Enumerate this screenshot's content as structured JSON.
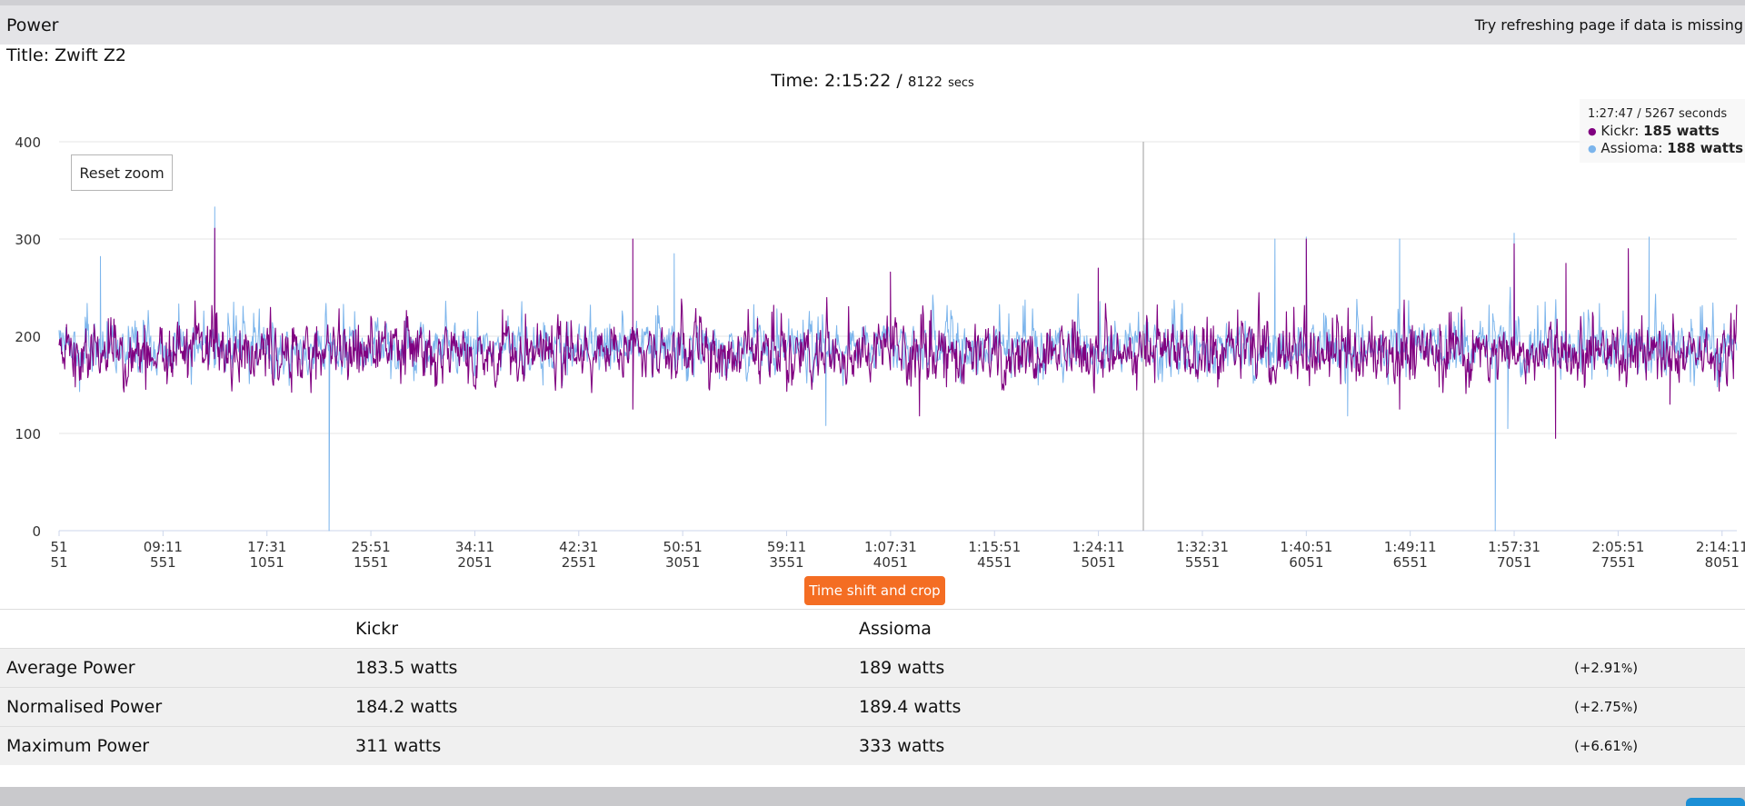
{
  "header": {
    "title": "Power",
    "note": "Try refreshing page if data is missing"
  },
  "activity": {
    "title": "Title: Zwift Z2"
  },
  "time": {
    "label": "Time: 2:15:22 /",
    "secs": "8122",
    "unit": "secs"
  },
  "tooltip": {
    "head": "1:27:47 / 5267 seconds",
    "kickr_label": "Kickr:",
    "kickr_value": "185 watts",
    "assioma_label": "Assioma:",
    "assioma_value": "188 watts"
  },
  "buttons": {
    "reset_zoom": "Reset zoom",
    "time_shift": "Time shift and crop"
  },
  "colors": {
    "kickr": "#800080",
    "assioma": "#7cb5ec",
    "accent": "#f46d23",
    "grid": "#e6e6e6"
  },
  "chart_data": {
    "type": "line",
    "ylim": [
      0,
      400
    ],
    "xlim": [
      51,
      8122
    ],
    "yticks": [
      0,
      100,
      200,
      300,
      400
    ],
    "xticks": [
      {
        "t": 51,
        "clock": "51",
        "secs": "51"
      },
      {
        "t": 551,
        "clock": "09:11",
        "secs": "551"
      },
      {
        "t": 1051,
        "clock": "17:31",
        "secs": "1051"
      },
      {
        "t": 1551,
        "clock": "25:51",
        "secs": "1551"
      },
      {
        "t": 2051,
        "clock": "34:11",
        "secs": "2051"
      },
      {
        "t": 2551,
        "clock": "42:31",
        "secs": "2551"
      },
      {
        "t": 3051,
        "clock": "50:51",
        "secs": "3051"
      },
      {
        "t": 3551,
        "clock": "59:11",
        "secs": "3551"
      },
      {
        "t": 4051,
        "clock": "1:07:31",
        "secs": "4051"
      },
      {
        "t": 4551,
        "clock": "1:15:51",
        "secs": "4551"
      },
      {
        "t": 5051,
        "clock": "1:24:11",
        "secs": "5051"
      },
      {
        "t": 5551,
        "clock": "1:32:31",
        "secs": "5551"
      },
      {
        "t": 6051,
        "clock": "1:40:51",
        "secs": "6051"
      },
      {
        "t": 6551,
        "clock": "1:49:11",
        "secs": "6551"
      },
      {
        "t": 7051,
        "clock": "1:57:31",
        "secs": "7051"
      },
      {
        "t": 7551,
        "clock": "2:05:51",
        "secs": "7551"
      },
      {
        "t": 8051,
        "clock": "2:14:11",
        "secs": "8051"
      }
    ],
    "crosshair_t": 5267,
    "series": [
      {
        "name": "Kickr",
        "color": "#800080",
        "mean": 183.5,
        "max": 311,
        "min": 93,
        "peaks": [
          [
            800,
            311
          ],
          [
            2811,
            300
          ],
          [
            5050,
            270
          ],
          [
            6051,
            300
          ],
          [
            7051,
            295
          ],
          [
            7600,
            290
          ],
          [
            7300,
            275
          ],
          [
            4050,
            266
          ]
        ],
        "dips": [
          [
            2811,
            125
          ],
          [
            7250,
            95
          ],
          [
            4190,
            118
          ],
          [
            6500,
            125
          ],
          [
            7800,
            130
          ]
        ]
      },
      {
        "name": "Assioma",
        "color": "#7cb5ec",
        "mean": 189,
        "max": 333,
        "min": 0,
        "peaks": [
          [
            800,
            333
          ],
          [
            6051,
            302
          ],
          [
            7051,
            306
          ],
          [
            7700,
            302
          ],
          [
            6500,
            300
          ],
          [
            5900,
            300
          ],
          [
            3010,
            285
          ],
          [
            250,
            282
          ]
        ],
        "dips": [
          [
            1350,
            0
          ],
          [
            6960,
            0
          ],
          [
            3740,
            108
          ],
          [
            7020,
            105
          ],
          [
            6250,
            118
          ]
        ]
      }
    ]
  },
  "stats": {
    "headers": [
      "",
      "Kickr",
      "Assioma",
      ""
    ],
    "rows": [
      {
        "label": "Average Power",
        "kickr": "183.5 watts",
        "assioma": "189 watts",
        "diff": "(+2.91",
        "pct": "%",
        "close": ")"
      },
      {
        "label": "Normalised Power",
        "kickr": "184.2 watts",
        "assioma": "189.4 watts",
        "diff": "(+2.75",
        "pct": "%",
        "close": ")"
      },
      {
        "label": "Maximum Power",
        "kickr": "311 watts",
        "assioma": "333 watts",
        "diff": "(+6.61",
        "pct": "%",
        "close": ")"
      }
    ]
  }
}
